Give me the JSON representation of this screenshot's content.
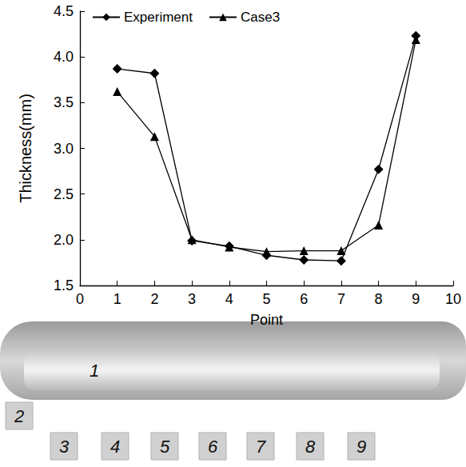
{
  "chart_data": {
    "type": "line",
    "x_label": "Point",
    "y_label": "Thickness(mm)",
    "series": [
      {
        "name": "Experiment",
        "color": "#000000",
        "marker": "diamond",
        "line_style": "solid",
        "x": [
          1,
          2,
          3,
          4,
          5,
          6,
          7,
          8,
          9
        ],
        "values": [
          3.87,
          3.82,
          1.99,
          1.93,
          1.83,
          1.78,
          1.77,
          2.77,
          4.23
        ]
      },
      {
        "name": "Case3",
        "color": "#000000",
        "marker": "triangle",
        "line_style": "solid",
        "x": [
          1,
          2,
          3,
          4,
          5,
          6,
          7,
          8,
          9
        ],
        "values": [
          3.62,
          3.13,
          2.0,
          1.92,
          1.87,
          1.88,
          1.88,
          2.16,
          4.19
        ]
      }
    ],
    "xlim": [
      0,
      10
    ],
    "xticks": [
      0,
      1,
      2,
      3,
      4,
      5,
      6,
      7,
      8,
      9,
      10
    ],
    "ylim": [
      1.5,
      4.5
    ],
    "yticks": [
      1.5,
      {
        "value": 2,
        "label": "2.0"
      },
      2.5,
      {
        "value": 3,
        "label": "3.0"
      },
      3.5,
      {
        "value": 4,
        "label": "4.0"
      },
      4.5
    ],
    "grid": false,
    "legend": "top-left",
    "annotations": [
      "1",
      "2",
      "3",
      "4",
      "5",
      "6",
      "7",
      "8",
      "9"
    ]
  }
}
